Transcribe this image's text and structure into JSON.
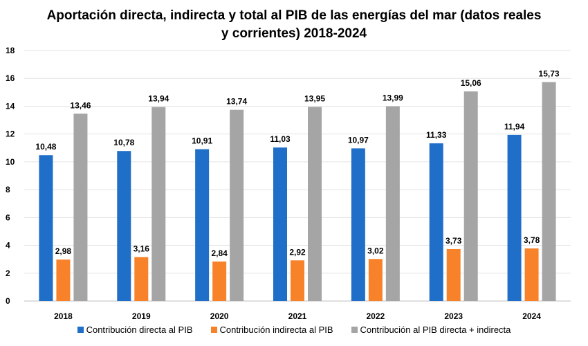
{
  "chart_data": {
    "type": "bar",
    "title": "Aportación directa, indirecta y total al PIB de las energías del mar (datos reales y corrientes) 2018-2024",
    "categories": [
      "2018",
      "2019",
      "2020",
      "2021",
      "2022",
      "2023",
      "2024"
    ],
    "series": [
      {
        "name": "Contribución directa al PIB",
        "color": "#1f6fc8",
        "values": [
          10.48,
          10.78,
          10.91,
          11.03,
          10.97,
          11.33,
          11.94
        ],
        "labels": [
          "10,48",
          "10,78",
          "10,91",
          "11,03",
          "10,97",
          "11,33",
          "11,94"
        ]
      },
      {
        "name": "Contribución indirecta al PIB",
        "color": "#f7822a",
        "values": [
          2.98,
          3.16,
          2.84,
          2.92,
          3.02,
          3.73,
          3.78
        ],
        "labels": [
          "2,98",
          "3,16",
          "2,84",
          "2,92",
          "3,02",
          "3,73",
          "3,78"
        ]
      },
      {
        "name": "Contribución al PIB directa + indirecta",
        "color": "#a5a5a5",
        "values": [
          13.46,
          13.94,
          13.74,
          13.95,
          13.99,
          15.06,
          15.73
        ],
        "labels": [
          "13,46",
          "13,94",
          "13,74",
          "13,95",
          "13,99",
          "15,06",
          "15,73"
        ]
      }
    ],
    "ylim": [
      0,
      18
    ],
    "yticks": [
      0,
      2,
      4,
      6,
      8,
      10,
      12,
      14,
      16,
      18
    ],
    "grid": true,
    "legend": "bottom"
  }
}
